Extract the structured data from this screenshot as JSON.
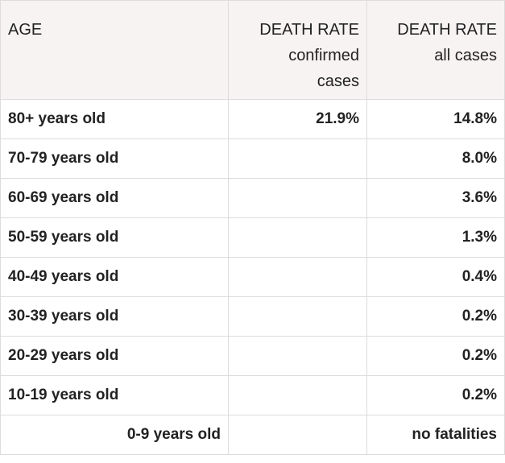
{
  "table": {
    "header": {
      "age": "AGE",
      "confirmed_title": "DEATH RATE",
      "confirmed_sub": "confirmed cases",
      "all_title": "DEATH RATE",
      "all_sub": "all cases"
    },
    "rows": [
      {
        "age": "80+ years old",
        "confirmed": "21.9%",
        "all": "14.8%"
      },
      {
        "age": "70-79 years old",
        "all": "8.0%"
      },
      {
        "age": "60-69 years old",
        "all": "3.6%"
      },
      {
        "age": "50-59 years old",
        "all": "1.3%"
      },
      {
        "age": "40-49 years old",
        "all": "0.4%"
      },
      {
        "age": "30-39 years old",
        "all": "0.2%"
      },
      {
        "age": "20-29 years old",
        "all": "0.2%"
      },
      {
        "age": "10-19 years old",
        "all": "0.2%"
      },
      {
        "age": "0-9 years old",
        "all": "no fatalities",
        "age_align": "right"
      }
    ]
  }
}
